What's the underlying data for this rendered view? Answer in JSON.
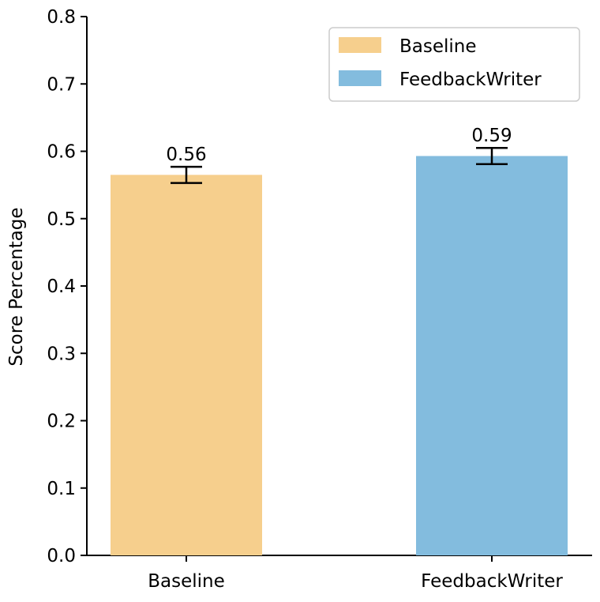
{
  "chart_data": {
    "type": "bar",
    "categories": [
      "Baseline",
      "FeedbackWriter"
    ],
    "values": [
      0.565,
      0.593
    ],
    "errors": [
      0.012,
      0.012
    ],
    "data_labels": [
      "0.56",
      "0.59"
    ],
    "colors": [
      "#f6cf8d",
      "#83bcde"
    ],
    "xlabel": "",
    "ylabel": "Score Percentage",
    "ylim": [
      0,
      0.8
    ],
    "yticks": [
      0.0,
      0.1,
      0.2,
      0.3,
      0.4,
      0.5,
      0.6,
      0.7,
      0.8
    ],
    "ytick_labels": [
      "0.0",
      "0.1",
      "0.2",
      "0.3",
      "0.4",
      "0.5",
      "0.6",
      "0.7",
      "0.8"
    ],
    "legend": {
      "placement": "top-right",
      "entries": [
        {
          "label": "Baseline",
          "color": "#f6cf8d"
        },
        {
          "label": "FeedbackWriter",
          "color": "#83bcde"
        }
      ]
    },
    "grid": false
  }
}
